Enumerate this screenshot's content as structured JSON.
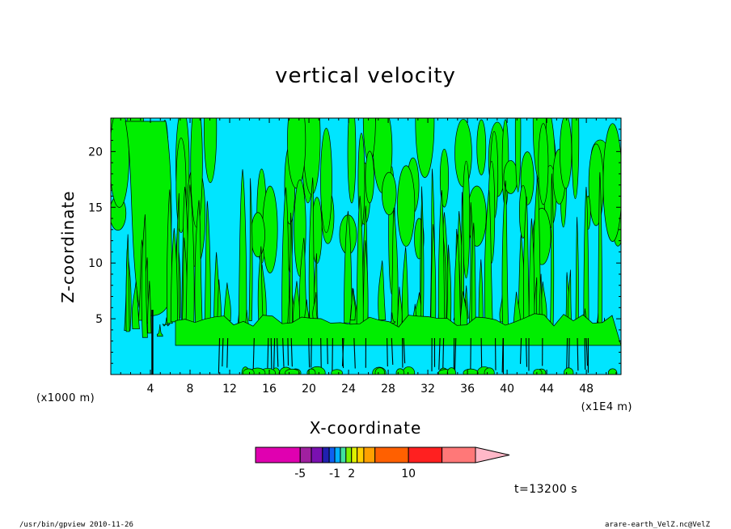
{
  "chart_data": {
    "type": "heatmap",
    "title": "vertical velocity",
    "xlabel": "X-coordinate",
    "ylabel": "Z-coordinate",
    "x_unit": "(x1E4 m)",
    "y_unit": "(x1000 m)",
    "xlim": [
      0,
      51.5
    ],
    "ylim": [
      0,
      23
    ],
    "x_ticks": [
      4,
      8,
      12,
      16,
      20,
      24,
      28,
      32,
      36,
      40,
      44,
      48
    ],
    "y_ticks": [
      5,
      10,
      15,
      20
    ],
    "time_label": "t=13200 s",
    "colorbar": {
      "tick_labels": [
        {
          "value": -5,
          "label": "-5"
        },
        {
          "value": -1,
          "label": "-1"
        },
        {
          "value": 2,
          "label": "2"
        },
        {
          "value": 10,
          "label": "10"
        }
      ],
      "colors": [
        "#e000b0",
        "#a020a0",
        "#7a10b0",
        "#2020b0",
        "#1060f0",
        "#00b0ff",
        "#40e0a0",
        "#80f000",
        "#e0f000",
        "#ffd000",
        "#ffa000",
        "#ff6000",
        "#ff2020",
        "#ff7878",
        "#ffb8c8"
      ],
      "units": [
        4,
        1,
        1,
        0.6,
        0.5,
        0.5,
        0.5,
        0.5,
        0.5,
        0.6,
        1,
        3,
        3,
        3,
        3
      ]
    },
    "field_colors": {
      "negative": "#00e5ff",
      "positive": "#00ee00",
      "contour": "#000000"
    }
  },
  "footer": {
    "left": "/usr/bin/gpview   2010-11-26",
    "right": "arare-earth_VelZ.nc@VelZ"
  }
}
